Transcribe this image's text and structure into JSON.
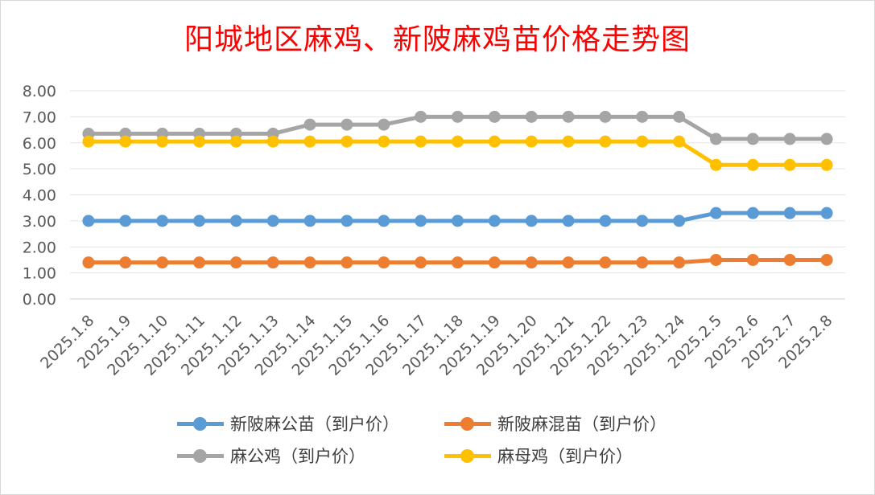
{
  "chart_data": {
    "type": "line",
    "title": "阳城地区麻鸡、新陂麻鸡苗价格走势图",
    "categories": [
      "2025.1.8",
      "2025.1.9",
      "2025.1.10",
      "2025.1.11",
      "2025.1.12",
      "2025.1.13",
      "2025.1.14",
      "2025.1.15",
      "2025.1.16",
      "2025.1.17",
      "2025.1.18",
      "2025.1.19",
      "2025.1.20",
      "2025.1.21",
      "2025.1.22",
      "2025.1.23",
      "2025.1.24",
      "2025.2.5",
      "2025.2.6",
      "2025.2.7",
      "2025.2.8"
    ],
    "ylim": [
      0,
      8
    ],
    "yticks": [
      "0.00",
      "1.00",
      "2.00",
      "3.00",
      "4.00",
      "5.00",
      "6.00",
      "7.00",
      "8.00"
    ],
    "grid": true,
    "legend_position": "bottom",
    "series": [
      {
        "name": "新陂麻公苗（到户价）",
        "color": "#5b9bd5",
        "values": [
          3.0,
          3.0,
          3.0,
          3.0,
          3.0,
          3.0,
          3.0,
          3.0,
          3.0,
          3.0,
          3.0,
          3.0,
          3.0,
          3.0,
          3.0,
          3.0,
          3.0,
          3.3,
          3.3,
          3.3,
          3.3
        ]
      },
      {
        "name": "新陂麻混苗（到户价）",
        "color": "#ed7d31",
        "values": [
          1.4,
          1.4,
          1.4,
          1.4,
          1.4,
          1.4,
          1.4,
          1.4,
          1.4,
          1.4,
          1.4,
          1.4,
          1.4,
          1.4,
          1.4,
          1.4,
          1.4,
          1.5,
          1.5,
          1.5,
          1.5
        ]
      },
      {
        "name": "麻公鸡（到户价）",
        "color": "#a5a5a5",
        "values": [
          6.35,
          6.35,
          6.35,
          6.35,
          6.35,
          6.35,
          6.7,
          6.7,
          6.7,
          7.0,
          7.0,
          7.0,
          7.0,
          7.0,
          7.0,
          7.0,
          7.0,
          6.15,
          6.15,
          6.15,
          6.15
        ]
      },
      {
        "name": "麻母鸡（到户价）",
        "color": "#ffc000",
        "values": [
          6.05,
          6.05,
          6.05,
          6.05,
          6.05,
          6.05,
          6.05,
          6.05,
          6.05,
          6.05,
          6.05,
          6.05,
          6.05,
          6.05,
          6.05,
          6.05,
          6.05,
          5.15,
          5.15,
          5.15,
          5.15
        ]
      }
    ]
  }
}
